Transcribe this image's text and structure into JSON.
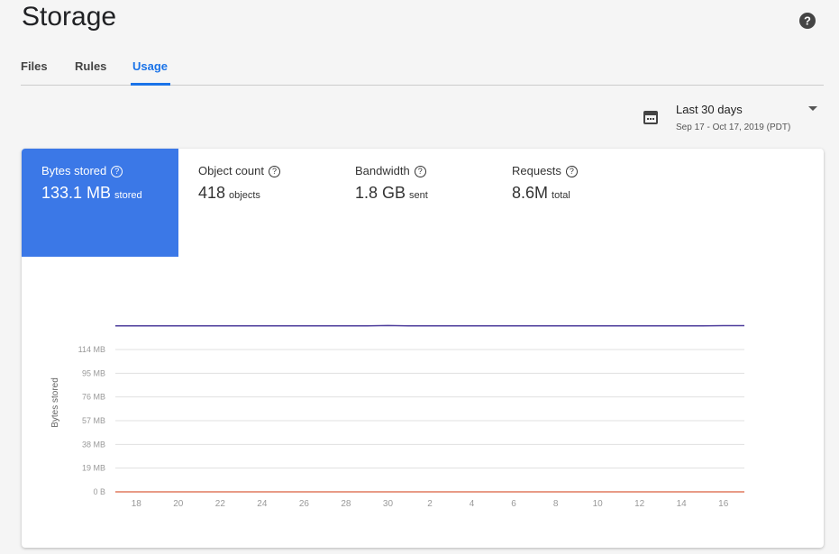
{
  "header": {
    "title": "Storage"
  },
  "tabs": [
    "Files",
    "Rules",
    "Usage"
  ],
  "date_range": {
    "label": "Last 30 days",
    "range": "Sep 17 - Oct 17, 2019 (PDT)"
  },
  "metrics": [
    {
      "label": "Bytes stored",
      "value": "133.1 MB",
      "unit": "stored"
    },
    {
      "label": "Object count",
      "value": "418",
      "unit": "objects"
    },
    {
      "label": "Bandwidth",
      "value": "1.8 GB",
      "unit": "sent"
    },
    {
      "label": "Requests",
      "value": "8.6M",
      "unit": "total"
    }
  ],
  "chart_data": {
    "type": "line",
    "y_label": "Bytes stored",
    "categories": [
      null,
      "18",
      null,
      "20",
      null,
      "22",
      null,
      "24",
      null,
      "26",
      null,
      "28",
      null,
      "30",
      null,
      "2",
      null,
      "4",
      null,
      "6",
      null,
      "8",
      null,
      "10",
      null,
      "12",
      null,
      "14",
      null,
      "16",
      null
    ],
    "series": [
      {
        "color": "#4e3d9c",
        "values": [
          133,
          133,
          133,
          133,
          133,
          133,
          133,
          133,
          133,
          133,
          133,
          133,
          133,
          133.2,
          133,
          132.9,
          132.9,
          132.9,
          132.9,
          132.9,
          132.9,
          132.9,
          132.9,
          132.9,
          132.9,
          132.9,
          132.9,
          132.9,
          132.9,
          133.1,
          133.1
        ]
      },
      {
        "color": "#e07a5f",
        "values": [
          0,
          0,
          0,
          0,
          0,
          0,
          0,
          0,
          0,
          0,
          0,
          0,
          0,
          0,
          0,
          0,
          0,
          0,
          0,
          0,
          0,
          0,
          0,
          0,
          0,
          0,
          0,
          0,
          0,
          0,
          0
        ]
      }
    ],
    "ylim": [
      0,
      171
    ],
    "yticks": [
      {
        "value": 0,
        "label": "0 B"
      },
      {
        "value": 19,
        "label": "19 MB"
      },
      {
        "value": 38,
        "label": "38 MB"
      },
      {
        "value": 57,
        "label": "57 MB"
      },
      {
        "value": 76,
        "label": "76 MB"
      },
      {
        "value": 95,
        "label": "95 MB"
      },
      {
        "value": 114,
        "label": "114 MB"
      }
    ],
    "grid": true
  }
}
